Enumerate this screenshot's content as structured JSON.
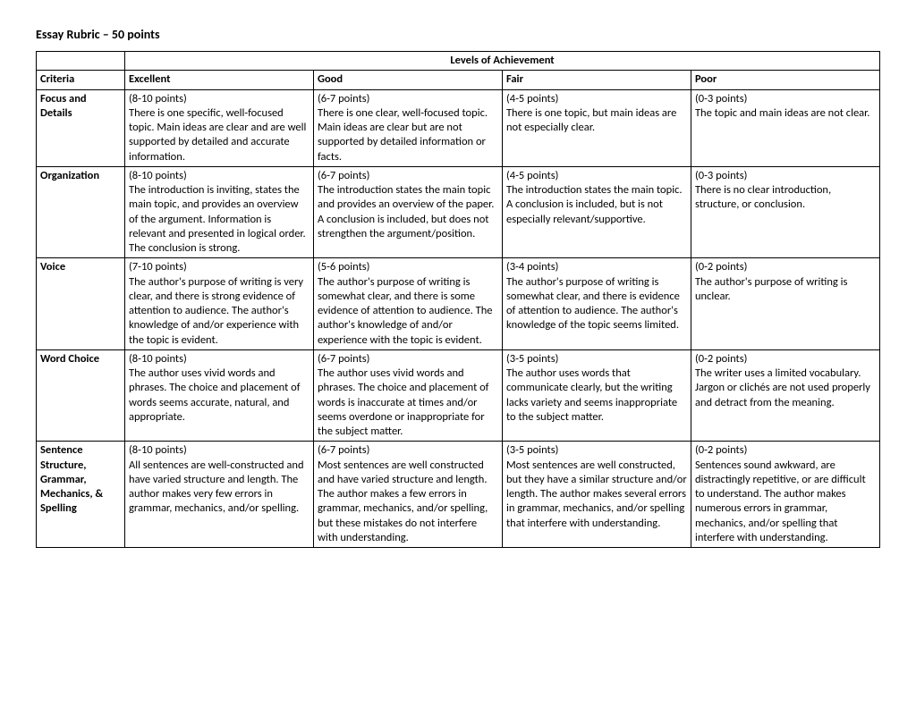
{
  "title": "Essay Rubric – 50 points",
  "levelsHeader": "Levels of Achievement",
  "headers": {
    "criteria": "Criteria",
    "excellent": "Excellent",
    "good": "Good",
    "fair": "Fair",
    "poor": "Poor"
  },
  "rows": [
    {
      "criteria": "Focus and Details",
      "excellent_pts": "(8-10 points)",
      "excellent_txt": "There is one specific, well-focused topic. Main ideas are clear and are well supported by detailed and accurate information.",
      "good_pts": "(6-7 points)",
      "good_txt": "There is one clear, well-focused topic. Main ideas are clear but are not supported by detailed information or facts.",
      "fair_pts": "(4-5 points)",
      "fair_txt": "There is one topic, but main ideas are not especially clear.",
      "poor_pts": "(0-3 points)",
      "poor_txt": "The topic and main ideas are not clear."
    },
    {
      "criteria": "Organization",
      "excellent_pts": "(8-10 points)",
      "excellent_txt": "The introduction is inviting, states the main topic, and provides an overview of the argument. Information is relevant and presented in logical order. The conclusion is strong.",
      "good_pts": "(6-7 points)",
      "good_txt": "The introduction states the main topic and provides an overview of the paper. A conclusion is included, but does not strengthen the argument/position.",
      "fair_pts": "(4-5 points)",
      "fair_txt": "The introduction states the main topic. A conclusion is included, but is not especially relevant/supportive.",
      "poor_pts": "(0-3 points)",
      "poor_txt": "There is no clear introduction, structure, or conclusion."
    },
    {
      "criteria": "Voice",
      "excellent_pts": "(7-10 points)",
      "excellent_txt": "The author's purpose of writing is very clear, and there is strong evidence of attention to audience. The author's knowledge of and/or experience with the topic is evident.",
      "good_pts": "(5-6 points)",
      "good_txt": "The author's purpose of writing is somewhat clear, and there is some evidence of attention to audience. The author's knowledge of and/or experience with the topic is evident.",
      "fair_pts": "(3-4 points)",
      "fair_txt": "The author's purpose of writing is somewhat clear, and there is evidence of attention to audience. The author's knowledge of the topic seems limited.",
      "poor_pts": "(0-2 points)",
      "poor_txt": "The author's purpose of writing is unclear."
    },
    {
      "criteria": "Word Choice",
      "excellent_pts": "(8-10 points)",
      "excellent_txt": "The author uses vivid words and phrases. The choice and placement of words seems accurate, natural, and appropriate.",
      "good_pts": "(6-7 points)",
      "good_txt": "The author uses vivid words and phrases. The choice and placement of words is inaccurate at times and/or seems overdone or inappropriate for the subject matter.",
      "fair_pts": "(3-5 points)",
      "fair_txt": "The author uses words that communicate clearly, but the writing lacks variety and seems inappropriate to the subject matter.",
      "poor_pts": "(0-2 points)",
      "poor_txt": "The writer uses a limited vocabulary. Jargon or clichés are not used properly and detract from the meaning."
    },
    {
      "criteria": "Sentence Structure, Grammar, Mechanics, & Spelling",
      "excellent_pts": "(8-10 points)",
      "excellent_txt": "All sentences are well-constructed and have varied structure and length. The author makes very few errors in grammar, mechanics, and/or spelling.",
      "good_pts": "(6-7 points)",
      "good_txt": "Most sentences are well constructed and have varied structure and length. The author makes a few errors in grammar, mechanics, and/or spelling, but these mistakes do not interfere with understanding.",
      "fair_pts": "(3-5 points)",
      "fair_txt": "Most sentences are well constructed, but they have a similar structure and/or length. The author makes several errors in grammar, mechanics, and/or spelling that interfere with understanding.",
      "poor_pts": "(0-2 points)",
      "poor_txt": "Sentences sound awkward, are distractingly repetitive, or are difficult to understand. The author makes numerous errors in grammar, mechanics, and/or spelling that interfere with understanding."
    }
  ]
}
